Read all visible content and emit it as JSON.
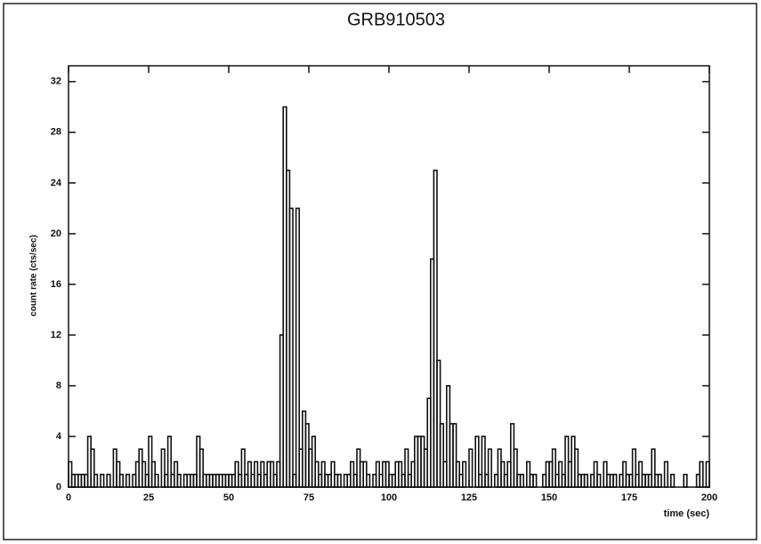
{
  "chart_data": {
    "type": "histogram",
    "title": "GRB910503",
    "x_label": "time (sec)",
    "y_label": "count rate (cts/sec)",
    "bins": [
      0,
      1,
      2,
      3,
      4,
      5,
      6,
      7,
      8,
      9,
      10,
      11,
      12,
      13,
      14,
      15,
      16,
      17,
      18,
      19,
      20,
      21,
      22,
      23,
      24,
      25,
      26,
      27,
      28,
      29,
      30,
      31,
      32,
      33,
      34,
      35,
      36,
      37,
      38,
      39,
      40,
      41,
      42,
      43,
      44,
      45,
      46,
      47,
      48,
      49,
      50,
      51,
      52,
      53,
      54,
      55,
      56,
      57,
      58,
      59,
      60,
      61,
      62,
      63,
      64,
      65,
      66,
      67,
      68,
      69,
      70,
      71,
      72,
      73,
      74,
      75,
      76,
      77,
      78,
      79,
      80,
      81,
      82,
      83,
      84,
      85,
      86,
      87,
      88,
      89,
      90,
      91,
      92,
      93,
      94,
      95,
      96,
      97,
      98,
      99,
      100,
      101,
      102,
      103,
      104,
      105,
      106,
      107,
      108,
      109,
      110,
      111,
      112,
      113,
      114,
      115,
      116,
      117,
      118,
      119,
      120,
      121,
      122,
      123,
      124,
      125,
      126,
      127,
      128,
      129,
      130,
      131,
      132,
      133,
      134,
      135,
      136,
      137,
      138,
      139,
      140,
      141,
      142,
      143,
      144,
      145,
      146,
      147,
      148,
      149,
      150,
      151,
      152,
      153,
      154,
      155,
      156,
      157,
      158,
      159,
      160,
      161,
      162,
      163,
      164,
      165,
      166,
      167,
      168,
      169,
      170,
      171,
      172,
      173,
      174,
      175,
      176,
      177,
      178,
      179,
      180,
      181,
      182,
      183,
      184,
      185,
      186,
      187,
      188,
      189,
      190,
      191,
      192,
      193,
      194,
      195,
      196,
      197,
      198,
      199,
      200
    ],
    "values": [
      2,
      1,
      1,
      1,
      1,
      1,
      4,
      3,
      1,
      0,
      1,
      0,
      1,
      0,
      3,
      2,
      1,
      0,
      1,
      0,
      1,
      2,
      3,
      2,
      1,
      4,
      2,
      1,
      0,
      3,
      1,
      4,
      1,
      2,
      1,
      0,
      1,
      1,
      1,
      1,
      4,
      3,
      1,
      1,
      1,
      1,
      1,
      1,
      1,
      1,
      1,
      1,
      2,
      1,
      3,
      1,
      2,
      1,
      2,
      1,
      2,
      1,
      2,
      2,
      1,
      2,
      12,
      30,
      25,
      22,
      1,
      22,
      3,
      6,
      5,
      3,
      4,
      2,
      1,
      2,
      1,
      1,
      2,
      1,
      1,
      0,
      1,
      1,
      2,
      1,
      3,
      2,
      2,
      1,
      0,
      1,
      2,
      1,
      2,
      2,
      1,
      1,
      2,
      2,
      1,
      3,
      1,
      2,
      4,
      4,
      4,
      3,
      7,
      18,
      25,
      10,
      5,
      2,
      8,
      5,
      5,
      2,
      1,
      2,
      0,
      3,
      0,
      4,
      1,
      4,
      1,
      3,
      0,
      1,
      3,
      2,
      1,
      2,
      5,
      3,
      1,
      1,
      0,
      2,
      1,
      1,
      0,
      0,
      1,
      2,
      2,
      3,
      1,
      2,
      1,
      4,
      2,
      4,
      3,
      1,
      1,
      1,
      0,
      1,
      2,
      1,
      0,
      2,
      1,
      1,
      1,
      0,
      1,
      2,
      1,
      1,
      3,
      1,
      2,
      1,
      1,
      1,
      3,
      1,
      1,
      0,
      2,
      0,
      1,
      0,
      0,
      0,
      1,
      0,
      0,
      0,
      1,
      2,
      0,
      2
    ],
    "color": "#111111",
    "xlim": [
      0,
      200
    ],
    "xticks": [
      0,
      25,
      50,
      75,
      100,
      125,
      150,
      175,
      200
    ],
    "ylim": [
      0,
      33.25
    ],
    "yticks": [
      0,
      4,
      8,
      12,
      16,
      20,
      24,
      28,
      32
    ]
  }
}
